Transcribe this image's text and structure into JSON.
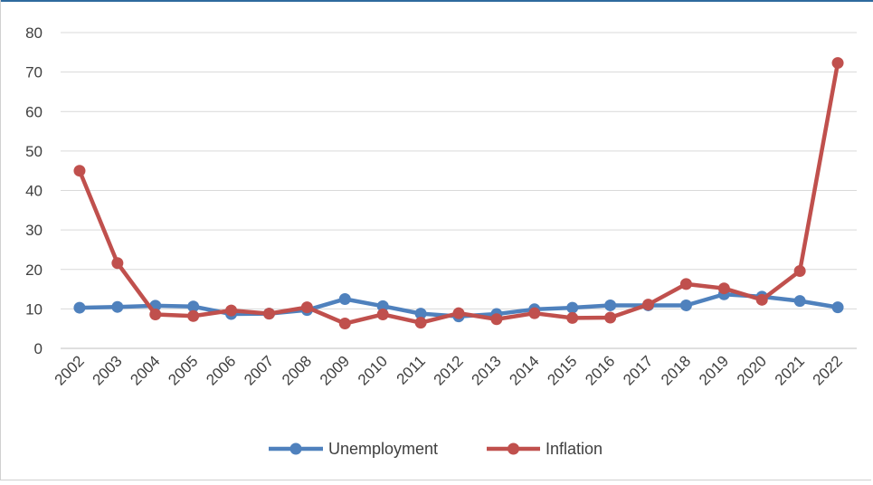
{
  "chart_data": {
    "type": "line",
    "title": "",
    "xlabel": "",
    "ylabel": "",
    "ylim": [
      0,
      80
    ],
    "y_ticks": [
      0,
      10,
      20,
      30,
      40,
      50,
      60,
      70,
      80
    ],
    "grid": true,
    "legend_placement": "bottom-center",
    "categories": [
      "2002",
      "2003",
      "2004",
      "2005",
      "2006",
      "2007",
      "2008",
      "2009",
      "2010",
      "2011",
      "2012",
      "2013",
      "2014",
      "2015",
      "2016",
      "2017",
      "2018",
      "2019",
      "2020",
      "2021",
      "2022"
    ],
    "series": [
      {
        "name": "Unemployment",
        "color": "#4f81bd",
        "values": [
          10.3,
          10.5,
          10.8,
          10.6,
          8.7,
          8.8,
          9.7,
          12.5,
          10.7,
          8.8,
          8.1,
          8.7,
          9.9,
          10.3,
          10.9,
          10.9,
          10.9,
          13.7,
          13.1,
          12.0,
          10.4
        ]
      },
      {
        "name": "Inflation",
        "color": "#c0504d",
        "values": [
          45.0,
          21.6,
          8.6,
          8.2,
          9.6,
          8.8,
          10.4,
          6.3,
          8.6,
          6.5,
          8.9,
          7.4,
          8.9,
          7.7,
          7.8,
          11.1,
          16.3,
          15.2,
          12.3,
          19.6,
          72.3
        ]
      }
    ]
  }
}
